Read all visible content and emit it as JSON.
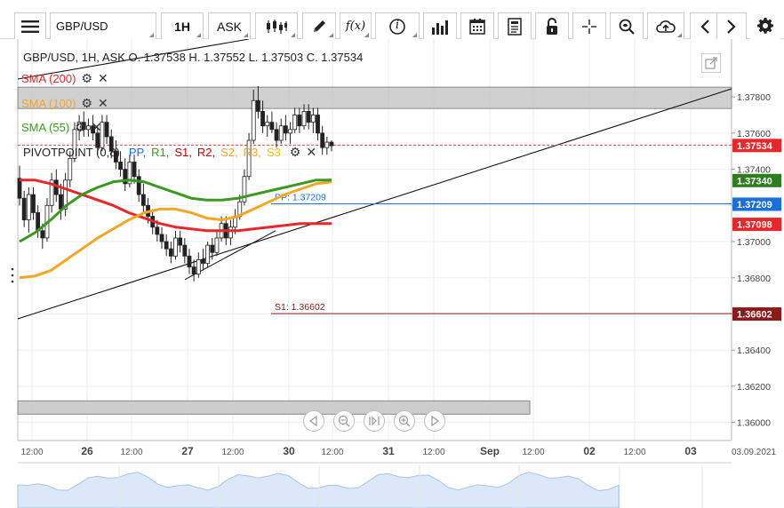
{
  "toolbar": {
    "symbol": "GBP/USD",
    "timeframe": "1H",
    "price_type": "ASK",
    "function_label": "f(x)",
    "info_label": "i"
  },
  "header": {
    "ohlc": "GBP/USD, 1H, ASK   O. 1.37538 H. 1.37552 L. 1.37503 C. 1.37534"
  },
  "indicators": [
    {
      "label": "SMA (200)",
      "color": "#e8272b"
    },
    {
      "label": "SMA (100)",
      "color": "#f5a623"
    },
    {
      "label": "SMA (55)",
      "color": "#3a9a1f"
    }
  ],
  "pivot": {
    "name": "PIVOTPOINT (0,8)",
    "levels": [
      {
        "label": "PP,",
        "color": "#1a6fd8"
      },
      {
        "label": "R1,",
        "color": "#3a9a1f"
      },
      {
        "label": "S1,",
        "color": "#c00000"
      },
      {
        "label": "R2,",
        "color": "#c00000"
      },
      {
        "label": "S2,",
        "color": "#f5a623"
      },
      {
        "label": "R3,",
        "color": "#f5a623"
      },
      {
        "label": "S3",
        "color": "#f0d000"
      }
    ],
    "pp_line_label": "PP: 1.37209",
    "s1_line_label": "S1: 1.36602"
  },
  "chart_data": {
    "type": "candlestick",
    "timeframe": "1H",
    "ylim": [
      1.359,
      1.3812
    ],
    "y_ticks": [
      "1.37800",
      "1.37600",
      "1.37400",
      "1.37200",
      "1.37000",
      "1.36800",
      "1.36600",
      "1.36400",
      "1.36200",
      "1.36000"
    ],
    "x_ticks": [
      "12:00",
      "26",
      "12:00",
      "27",
      "12:00",
      "30",
      "12:00",
      "31",
      "12:00",
      "Sep",
      "12:00",
      "02",
      "12:00",
      "03",
      "03.09.2021"
    ],
    "current_price": "1.37534",
    "price_labels": [
      {
        "text": "1.37534",
        "value": 1.37534,
        "color": "#e8272b"
      },
      {
        "text": "1.37340",
        "value": 1.3734,
        "color": "#2e7d1f"
      },
      {
        "text": "1.37209",
        "value": 1.37209,
        "color": "#1a6fd8"
      },
      {
        "text": "1.37098",
        "value": 1.37098,
        "color": "#e8272b"
      },
      {
        "text": "1.36602",
        "value": 1.36602,
        "color": "#8b1a1a"
      }
    ],
    "pivot_pp": 1.37209,
    "pivot_s1": 1.36602,
    "candles": [
      [
        1.3735,
        1.3742,
        1.372,
        1.3724
      ],
      [
        1.3724,
        1.3728,
        1.3708,
        1.3712
      ],
      [
        1.3712,
        1.373,
        1.3705,
        1.3726
      ],
      [
        1.3726,
        1.373,
        1.3712,
        1.3716
      ],
      [
        1.3716,
        1.372,
        1.3702,
        1.3706
      ],
      [
        1.3706,
        1.371,
        1.3696,
        1.3702
      ],
      [
        1.3702,
        1.3724,
        1.37,
        1.372
      ],
      [
        1.372,
        1.3738,
        1.3716,
        1.3734
      ],
      [
        1.3734,
        1.374,
        1.3722,
        1.3726
      ],
      [
        1.3726,
        1.3732,
        1.3712,
        1.3718
      ],
      [
        1.3718,
        1.3738,
        1.3714,
        1.3734
      ],
      [
        1.3734,
        1.375,
        1.373,
        1.3746
      ],
      [
        1.3746,
        1.3766,
        1.3744,
        1.3762
      ],
      [
        1.3762,
        1.377,
        1.3756,
        1.3766
      ],
      [
        1.3766,
        1.3772,
        1.3758,
        1.3762
      ],
      [
        1.3762,
        1.3768,
        1.3758,
        1.3764
      ],
      [
        1.3764,
        1.377,
        1.3756,
        1.376
      ],
      [
        1.376,
        1.3764,
        1.3748,
        1.3752
      ],
      [
        1.3752,
        1.377,
        1.375,
        1.3766
      ],
      [
        1.3766,
        1.377,
        1.3754,
        1.3758
      ],
      [
        1.3758,
        1.3762,
        1.3746,
        1.375
      ],
      [
        1.375,
        1.3756,
        1.374,
        1.3744
      ],
      [
        1.3744,
        1.375,
        1.3736,
        1.374
      ],
      [
        1.374,
        1.3746,
        1.3728,
        1.3732
      ],
      [
        1.3732,
        1.3748,
        1.373,
        1.3744
      ],
      [
        1.3744,
        1.3748,
        1.3732,
        1.3736
      ],
      [
        1.3736,
        1.374,
        1.3722,
        1.3726
      ],
      [
        1.3726,
        1.3732,
        1.3716,
        1.372
      ],
      [
        1.372,
        1.3724,
        1.371,
        1.3714
      ],
      [
        1.3714,
        1.3718,
        1.3704,
        1.3708
      ],
      [
        1.3708,
        1.3712,
        1.37,
        1.3704
      ],
      [
        1.3704,
        1.3708,
        1.3696,
        1.37
      ],
      [
        1.37,
        1.3704,
        1.3692,
        1.3696
      ],
      [
        1.3696,
        1.37,
        1.3688,
        1.3692
      ],
      [
        1.3692,
        1.3706,
        1.369,
        1.3702
      ],
      [
        1.3702,
        1.3706,
        1.3694,
        1.3698
      ],
      [
        1.3698,
        1.3702,
        1.3688,
        1.3692
      ],
      [
        1.3692,
        1.3696,
        1.3682,
        1.3686
      ],
      [
        1.3686,
        1.369,
        1.3678,
        1.3682
      ],
      [
        1.3682,
        1.3694,
        1.368,
        1.369
      ],
      [
        1.369,
        1.3696,
        1.3684,
        1.3688
      ],
      [
        1.3688,
        1.37,
        1.3686,
        1.3698
      ],
      [
        1.3698,
        1.3702,
        1.369,
        1.3694
      ],
      [
        1.3694,
        1.3706,
        1.3692,
        1.3702
      ],
      [
        1.3702,
        1.3714,
        1.37,
        1.371
      ],
      [
        1.371,
        1.3714,
        1.3698,
        1.3702
      ],
      [
        1.3702,
        1.3712,
        1.3698,
        1.3708
      ],
      [
        1.3708,
        1.3718,
        1.3704,
        1.3714
      ],
      [
        1.3714,
        1.3726,
        1.3712,
        1.3722
      ],
      [
        1.3722,
        1.374,
        1.372,
        1.3736
      ],
      [
        1.3736,
        1.376,
        1.3734,
        1.3756
      ],
      [
        1.3756,
        1.3784,
        1.3754,
        1.3778
      ],
      [
        1.3778,
        1.3786,
        1.3768,
        1.3772
      ],
      [
        1.3772,
        1.3778,
        1.376,
        1.3764
      ],
      [
        1.3764,
        1.377,
        1.3758,
        1.3766
      ],
      [
        1.3766,
        1.3772,
        1.376,
        1.3762
      ],
      [
        1.3762,
        1.3766,
        1.3752,
        1.3756
      ],
      [
        1.3756,
        1.3768,
        1.3754,
        1.3764
      ],
      [
        1.3764,
        1.377,
        1.3756,
        1.376
      ],
      [
        1.376,
        1.3766,
        1.3754,
        1.3762
      ],
      [
        1.3762,
        1.3774,
        1.376,
        1.377
      ],
      [
        1.377,
        1.3774,
        1.376,
        1.3764
      ],
      [
        1.3764,
        1.3776,
        1.3762,
        1.3772
      ],
      [
        1.3772,
        1.3776,
        1.3762,
        1.3766
      ],
      [
        1.3766,
        1.3774,
        1.376,
        1.377
      ],
      [
        1.377,
        1.3774,
        1.3756,
        1.376
      ],
      [
        1.376,
        1.3764,
        1.3748,
        1.3752
      ],
      [
        1.3752,
        1.3758,
        1.3748,
        1.3755
      ],
      [
        1.3755,
        1.3756,
        1.375,
        1.3753
      ]
    ],
    "sma_55": [
      1.37,
      1.3705,
      1.3712,
      1.372,
      1.3726,
      1.373,
      1.3733,
      1.3734,
      1.3733,
      1.373,
      1.3727,
      1.3724,
      1.3723,
      1.3723,
      1.3724,
      1.3726,
      1.3728,
      1.373,
      1.3732,
      1.3734,
      1.3734
    ],
    "sma_100": [
      1.368,
      1.3681,
      1.3684,
      1.369,
      1.3696,
      1.3702,
      1.3707,
      1.3712,
      1.3716,
      1.3718,
      1.3718,
      1.3716,
      1.3713,
      1.3712,
      1.3714,
      1.3718,
      1.3722,
      1.3726,
      1.3729,
      1.3732,
      1.3733
    ],
    "sma_200": [
      1.3734,
      1.3734,
      1.3732,
      1.3729,
      1.3726,
      1.3723,
      1.372,
      1.3716,
      1.3713,
      1.371,
      1.3708,
      1.3707,
      1.3706,
      1.3706,
      1.3706,
      1.3707,
      1.3708,
      1.3709,
      1.371,
      1.371,
      1.371
    ]
  }
}
